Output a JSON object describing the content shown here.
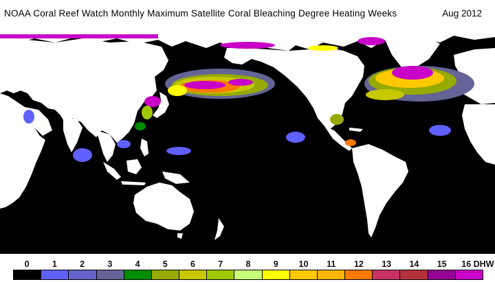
{
  "header": {
    "title": "NOAA Coral Reef Watch Monthly Maximum Satellite Coral Bleaching Degree Heating Weeks",
    "date": "Aug 2012"
  },
  "map": {
    "background_color": "#000000",
    "land_color": "#ffffff",
    "projection": "equirectangular",
    "central_meridian": "Pacific-centered"
  },
  "legend": {
    "ticks": [
      "0",
      "1",
      "2",
      "3",
      "4",
      "5",
      "6",
      "7",
      "8",
      "9",
      "10",
      "11",
      "12",
      "13",
      "14",
      "15",
      "16 DHW"
    ],
    "colors": [
      "#000000",
      "#6060ff",
      "#6464c8",
      "#646496",
      "#008c00",
      "#96aa00",
      "#c8c800",
      "#a0c800",
      "#c8ff78",
      "#ffff00",
      "#ffc800",
      "#ffb400",
      "#ff7800",
      "#c83264",
      "#b4323c",
      "#960096",
      "#c800c8"
    ]
  }
}
